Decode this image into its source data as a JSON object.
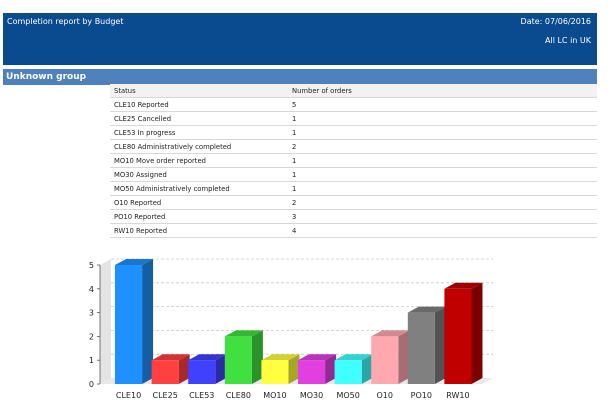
{
  "header": {
    "title": "Completion report by Budget",
    "date": "Date: 07/06/2016",
    "scope": "All LC in UK"
  },
  "group": {
    "label": "Unknown group"
  },
  "table": {
    "columns": [
      "Status",
      "Number of orders"
    ],
    "rows": [
      {
        "status": "CLE10 Reported",
        "count": "5"
      },
      {
        "status": "CLE25 Cancelled",
        "count": "1"
      },
      {
        "status": "CLE53 In progress",
        "count": "1"
      },
      {
        "status": "CLE80 Administratively completed",
        "count": "2"
      },
      {
        "status": "MO10 Move order reported",
        "count": "1"
      },
      {
        "status": "MO30 Assigned",
        "count": "1"
      },
      {
        "status": "MO50 Administratively completed",
        "count": "1"
      },
      {
        "status": "O10 Reported",
        "count": "2"
      },
      {
        "status": "PO10 Reported",
        "count": "3"
      },
      {
        "status": "RW10 Reported",
        "count": "4"
      }
    ]
  },
  "chart_data": {
    "type": "bar",
    "categories": [
      "CLE10",
      "CLE25",
      "CLE53",
      "CLE80",
      "MO10",
      "MO30",
      "MO50",
      "O10",
      "PO10",
      "RW10"
    ],
    "values": [
      5,
      1,
      1,
      2,
      1,
      1,
      1,
      2,
      3,
      4
    ],
    "colors": [
      "#1e90ff",
      "#ff4040",
      "#4040ff",
      "#40e040",
      "#ffff40",
      "#e040e0",
      "#40ffff",
      "#ffa8b0",
      "#808080",
      "#c00000"
    ],
    "ylim": [
      0,
      5
    ],
    "yticks": [
      "0",
      "1",
      "2",
      "3",
      "4",
      "5"
    ],
    "grid": true
  }
}
